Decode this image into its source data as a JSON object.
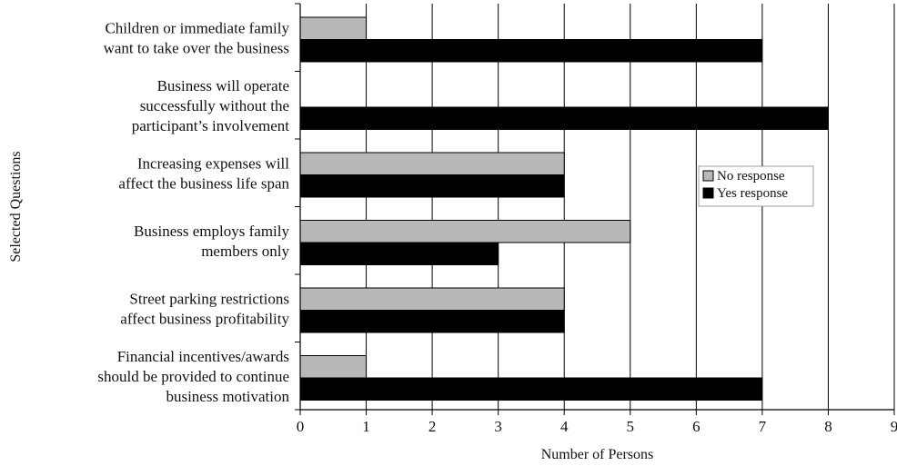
{
  "chart_data": {
    "type": "bar",
    "orientation": "horizontal",
    "categories": [
      [
        "Children or immediate family",
        "want to take over the business"
      ],
      [
        "Business will operate",
        "successfully without the",
        "participant’s involvement"
      ],
      [
        "Increasing expenses will",
        "affect the business life span"
      ],
      [
        "Business employs family",
        "members only"
      ],
      [
        "Street parking restrictions",
        "affect business profitability"
      ],
      [
        "Financial incentives/awards",
        "should be provided to continue",
        "business motivation"
      ]
    ],
    "series": [
      {
        "name": "No response",
        "color": "#b8b8b8",
        "values": [
          1,
          0,
          4,
          5,
          4,
          1
        ]
      },
      {
        "name": "Yes response",
        "color": "#000000",
        "values": [
          7,
          8,
          4,
          3,
          4,
          7
        ]
      }
    ],
    "xlabel": "Number of Persons",
    "ylabel": "Selected Questions",
    "xlim": [
      0,
      9
    ],
    "xticks": [
      0,
      1,
      2,
      3,
      4,
      5,
      6,
      7,
      8,
      9
    ],
    "grid": "vertical",
    "legend": "right"
  }
}
